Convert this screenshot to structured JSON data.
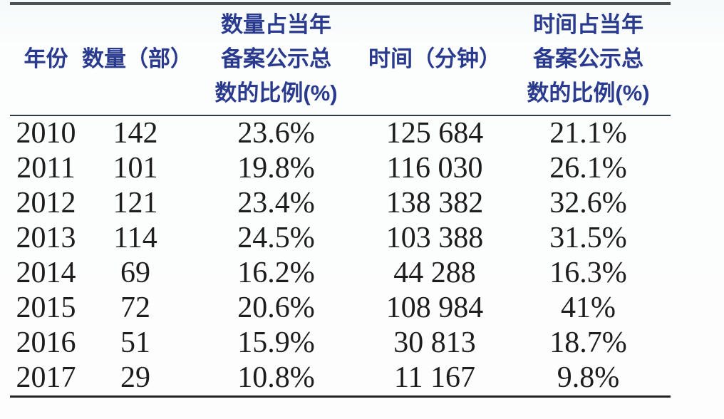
{
  "table": {
    "columns": [
      {
        "id": "year",
        "lines": [
          "年份"
        ]
      },
      {
        "id": "quantity",
        "lines": [
          "数量（部）"
        ]
      },
      {
        "id": "quantity_ratio",
        "lines": [
          "数量占当年",
          "备案公示总",
          "数的比例(%)"
        ]
      },
      {
        "id": "time",
        "lines": [
          "时间（分钟）"
        ]
      },
      {
        "id": "time_ratio",
        "lines": [
          "时间占当年",
          "备案公示总",
          "数的比例(%)"
        ]
      }
    ],
    "rows": [
      [
        "2010",
        "142",
        "23.6%",
        "125 684",
        "21.1%"
      ],
      [
        "2011",
        "101",
        "19.8%",
        "116 030",
        "26.1%"
      ],
      [
        "2012",
        "121",
        "23.4%",
        "138 382",
        "32.6%"
      ],
      [
        "2013",
        "114",
        "24.5%",
        "103 388",
        "31.5%"
      ],
      [
        "2014",
        "69",
        "16.2%",
        "44 288",
        "16.3%"
      ],
      [
        "2015",
        "72",
        "20.6%",
        "108 984",
        "41%"
      ],
      [
        "2016",
        "51",
        "15.9%",
        "30 813",
        "18.7%"
      ],
      [
        "2017",
        "29",
        "10.8%",
        "11 167",
        "9.8%"
      ]
    ]
  },
  "colors": {
    "header_text": "#2a3b8f",
    "body_text": "#1d1d1d",
    "top_rule": "#4b5154",
    "mid_rule": "#323a4a",
    "bottom_rule": "#232323",
    "background": "#fcfefd"
  },
  "chart_data": {
    "type": "table",
    "title": "",
    "columns": [
      "年份",
      "数量（部）",
      "数量占当年备案公示总数的比例(%)",
      "时间（分钟）",
      "时间占当年备案公示总数的比例(%)"
    ],
    "rows": [
      [
        "2010",
        142,
        "23.6%",
        125684,
        "21.1%"
      ],
      [
        "2011",
        101,
        "19.8%",
        116030,
        "26.1%"
      ],
      [
        "2012",
        121,
        "23.4%",
        138382,
        "32.6%"
      ],
      [
        "2013",
        114,
        "24.5%",
        103388,
        "31.5%"
      ],
      [
        "2014",
        69,
        "16.2%",
        44288,
        "16.3%"
      ],
      [
        "2015",
        72,
        "20.6%",
        108984,
        "41%"
      ],
      [
        "2016",
        51,
        "15.9%",
        30813,
        "18.7%"
      ],
      [
        "2017",
        29,
        "10.8%",
        11167,
        "9.8%"
      ]
    ]
  }
}
